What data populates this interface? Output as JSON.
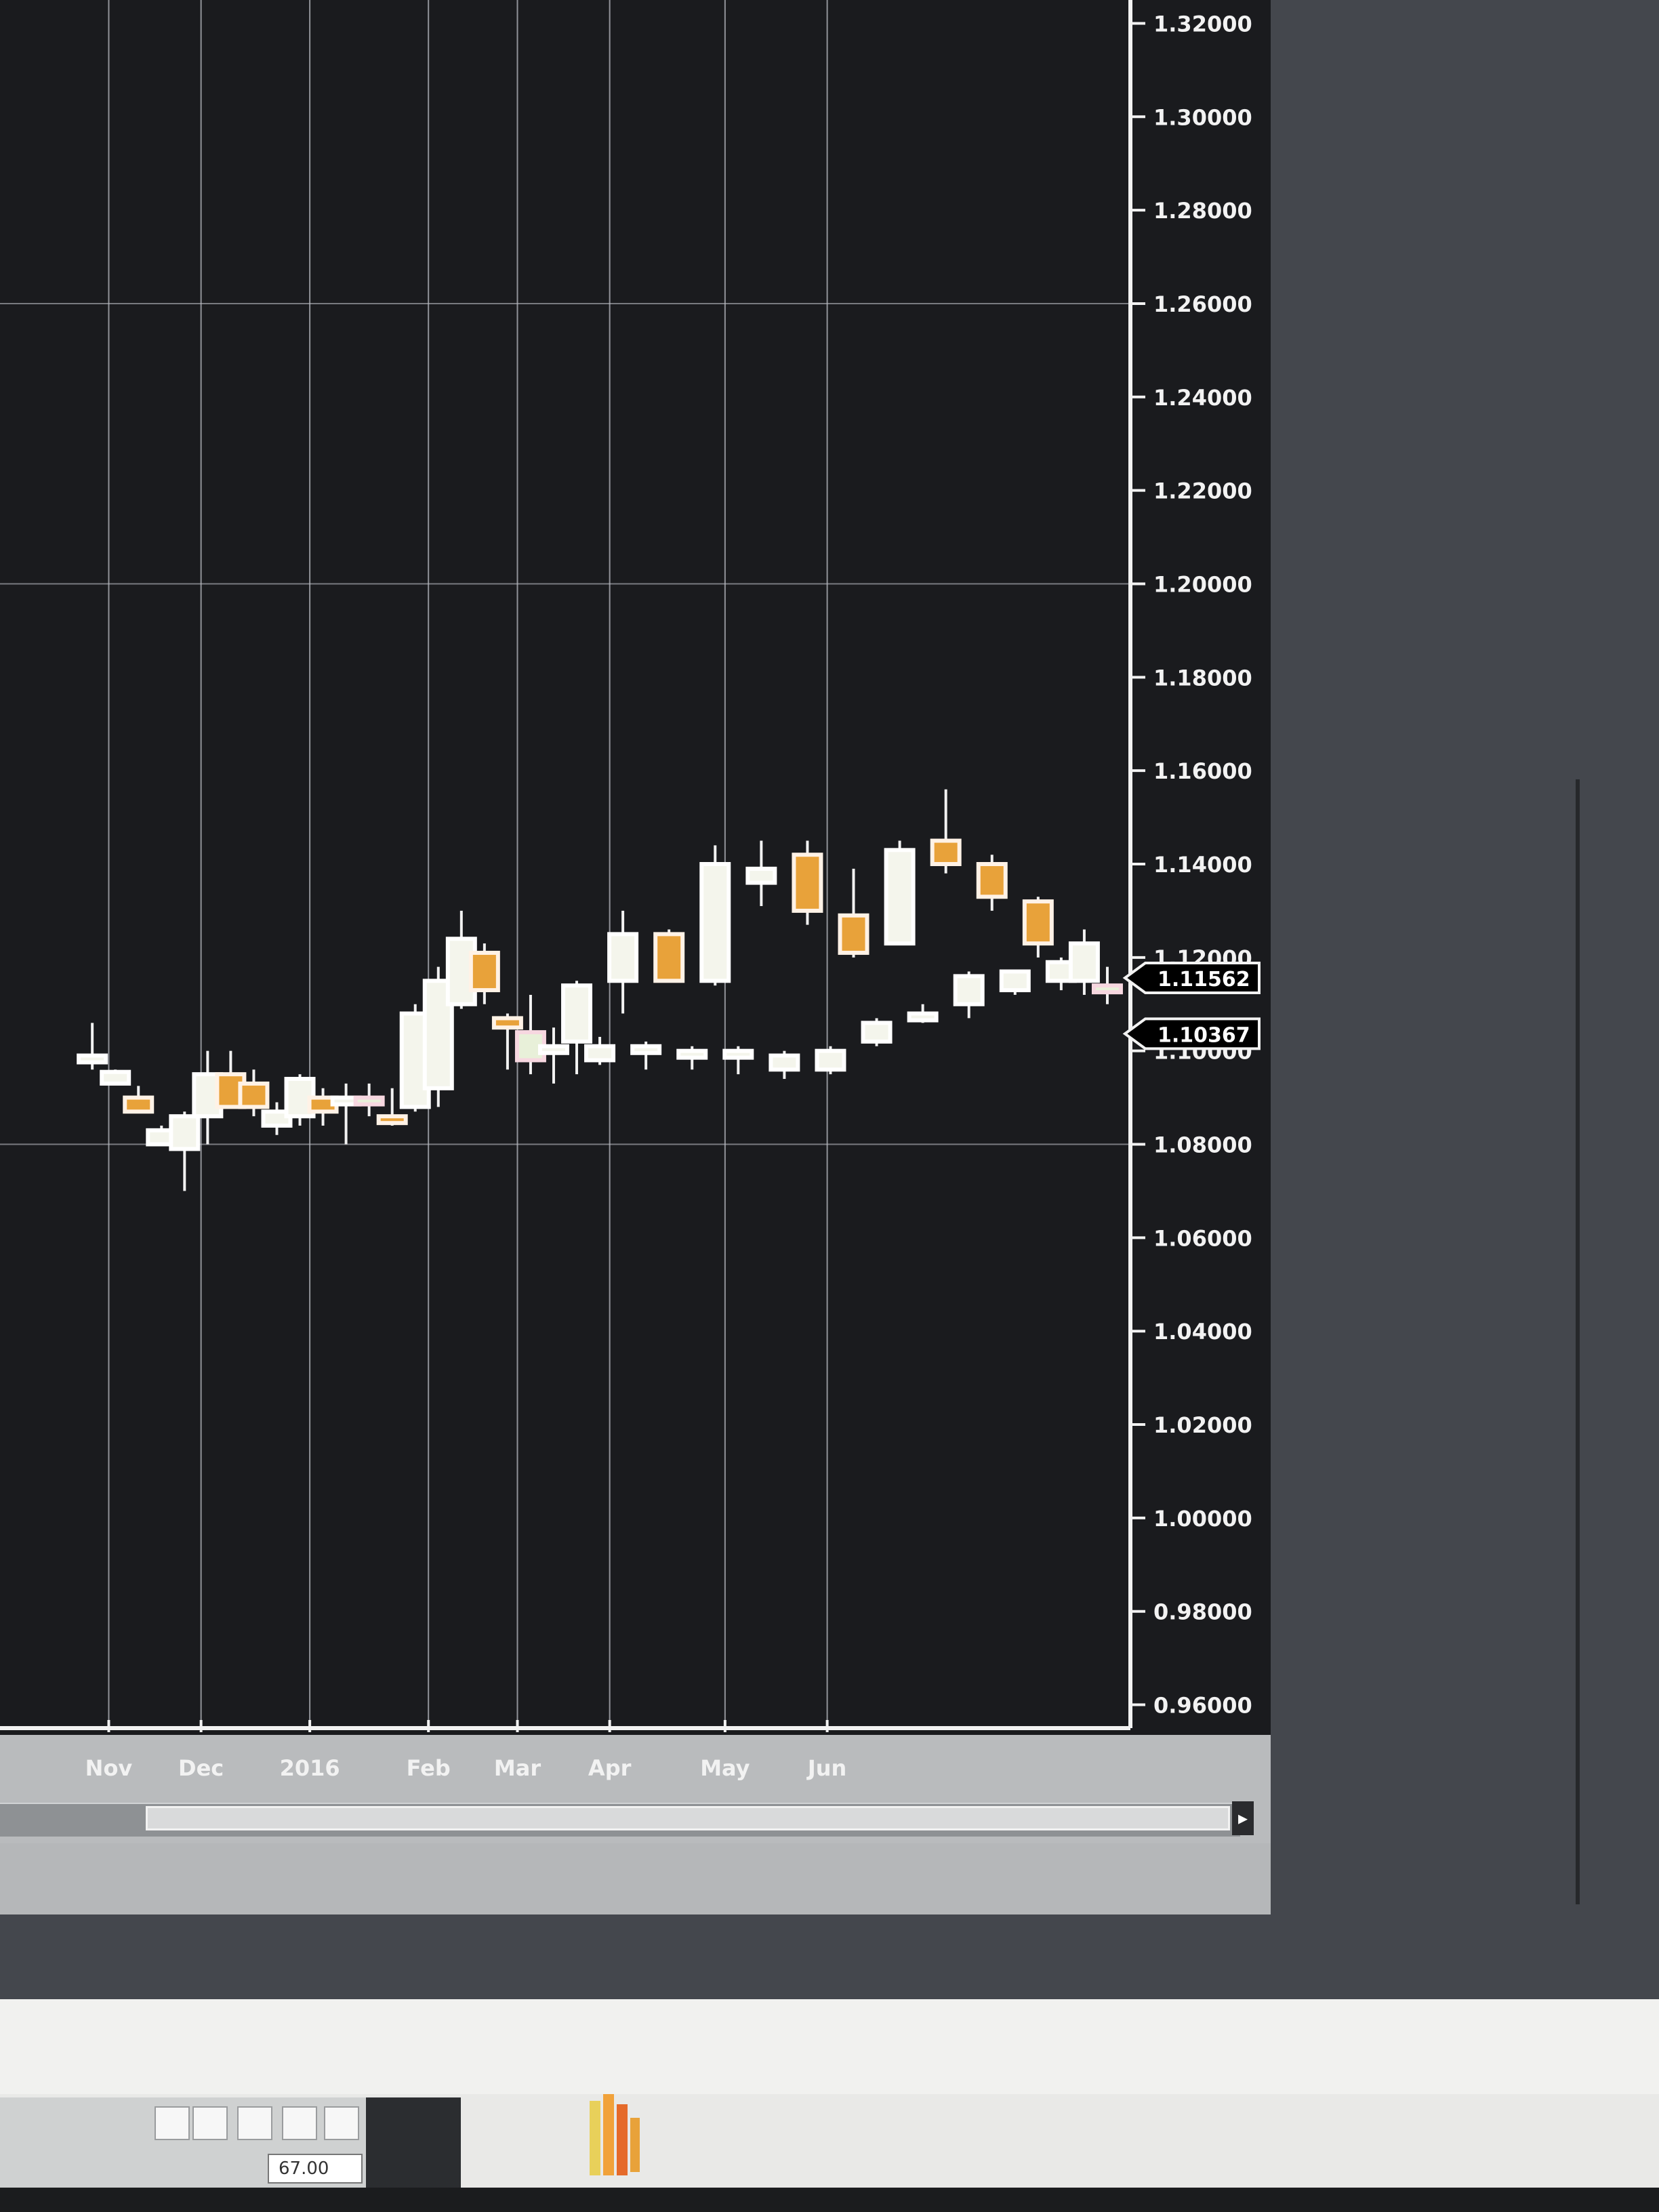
{
  "chart_data": {
    "type": "candlestick",
    "title": "",
    "x_ticks": [
      "Nov",
      "Dec",
      "2016",
      "Feb",
      "Mar",
      "Apr",
      "May",
      "Jun"
    ],
    "y_ticks": [
      "1.32000",
      "1.30000",
      "1.28000",
      "1.26000",
      "1.24000",
      "1.22000",
      "1.20000",
      "1.18000",
      "1.16000",
      "1.14000",
      "1.12000",
      "1.10000",
      "1.08000",
      "1.06000",
      "1.04000",
      "1.02000",
      "1.00000",
      "0.98000",
      "0.96000"
    ],
    "ylim": [
      0.955,
      1.325
    ],
    "grid": true,
    "price_labels": [
      "1.11562",
      "1.10367"
    ],
    "series": [
      {
        "candles": [
          {
            "date": "2015-10-29",
            "open": 1.0985,
            "high": 1.106,
            "low": 1.096,
            "close": 1.099,
            "bull": true,
            "hollow": false
          },
          {
            "date": "2015-11-05",
            "open": 1.093,
            "high": 1.096,
            "low": 1.093,
            "close": 1.0955,
            "bull": true,
            "hollow": false
          },
          {
            "date": "2015-11-12",
            "open": 1.09,
            "high": 1.0925,
            "low": 1.087,
            "close": 1.087,
            "bull": false,
            "hollow": true
          },
          {
            "date": "2015-11-19",
            "open": 1.08,
            "high": 1.084,
            "low": 1.08,
            "close": 1.083,
            "bull": true,
            "hollow": false
          },
          {
            "date": "2015-11-26",
            "open": 1.079,
            "high": 1.087,
            "low": 1.07,
            "close": 1.086,
            "bull": true,
            "hollow": false
          },
          {
            "date": "2015-12-03",
            "open": 1.086,
            "high": 1.1,
            "low": 1.08,
            "close": 1.095,
            "bull": true,
            "hollow": false
          },
          {
            "date": "2015-12-10",
            "open": 1.095,
            "high": 1.1,
            "low": 1.088,
            "close": 1.088,
            "bull": false,
            "hollow": true
          },
          {
            "date": "2015-12-17",
            "open": 1.093,
            "high": 1.096,
            "low": 1.086,
            "close": 1.088,
            "bull": false,
            "hollow": true
          },
          {
            "date": "2015-12-24",
            "open": 1.087,
            "high": 1.089,
            "low": 1.082,
            "close": 1.084,
            "bull": true,
            "hollow": false
          },
          {
            "date": "2015-12-31",
            "open": 1.086,
            "high": 1.095,
            "low": 1.084,
            "close": 1.094,
            "bull": true,
            "hollow": false
          },
          {
            "date": "2016-01-07",
            "open": 1.09,
            "high": 1.092,
            "low": 1.084,
            "close": 1.087,
            "bull": false,
            "hollow": true
          },
          {
            "date": "2016-01-14",
            "open": 1.09,
            "high": 1.093,
            "low": 1.08,
            "close": 1.09,
            "bull": true,
            "hollow": false
          },
          {
            "date": "2016-01-21",
            "open": 1.09,
            "high": 1.093,
            "low": 1.086,
            "close": 1.089,
            "bull": false,
            "hollow": false
          },
          {
            "date": "2016-01-28",
            "open": 1.085,
            "high": 1.092,
            "low": 1.084,
            "close": 1.086,
            "bull": false,
            "hollow": true
          },
          {
            "date": "2016-02-04",
            "open": 1.088,
            "high": 1.11,
            "low": 1.087,
            "close": 1.108,
            "bull": true,
            "hollow": false
          },
          {
            "date": "2016-02-11",
            "open": 1.092,
            "high": 1.118,
            "low": 1.088,
            "close": 1.115,
            "bull": true,
            "hollow": false
          },
          {
            "date": "2016-02-18",
            "open": 1.11,
            "high": 1.13,
            "low": 1.109,
            "close": 1.124,
            "bull": true,
            "hollow": false
          },
          {
            "date": "2016-02-25",
            "open": 1.121,
            "high": 1.123,
            "low": 1.11,
            "close": 1.113,
            "bull": false,
            "hollow": true
          },
          {
            "date": "2016-03-03",
            "open": 1.105,
            "high": 1.108,
            "low": 1.096,
            "close": 1.107,
            "bull": false,
            "hollow": true
          },
          {
            "date": "2016-03-10",
            "open": 1.104,
            "high": 1.112,
            "low": 1.095,
            "close": 1.098,
            "bull": false,
            "hollow": false
          },
          {
            "date": "2016-03-17",
            "open": 1.1,
            "high": 1.105,
            "low": 1.093,
            "close": 1.101,
            "bull": true,
            "hollow": false
          },
          {
            "date": "2016-03-24",
            "open": 1.102,
            "high": 1.115,
            "low": 1.095,
            "close": 1.114,
            "bull": true,
            "hollow": false
          },
          {
            "date": "2016-03-31",
            "open": 1.098,
            "high": 1.103,
            "low": 1.097,
            "close": 1.101,
            "bull": true,
            "hollow": false
          },
          {
            "date": "2016-04-07",
            "open": 1.115,
            "high": 1.13,
            "low": 1.108,
            "close": 1.125,
            "bull": true,
            "hollow": false
          },
          {
            "date": "2016-04-14",
            "open": 1.1,
            "high": 1.102,
            "low": 1.096,
            "close": 1.101,
            "bull": true,
            "hollow": false
          },
          {
            "date": "2016-04-21",
            "open": 1.125,
            "high": 1.126,
            "low": 1.115,
            "close": 1.115,
            "bull": false,
            "hollow": true
          },
          {
            "date": "2016-04-28",
            "open": 1.099,
            "high": 1.101,
            "low": 1.096,
            "close": 1.1,
            "bull": true,
            "hollow": false
          },
          {
            "date": "2016-05-05",
            "open": 1.115,
            "high": 1.144,
            "low": 1.114,
            "close": 1.14,
            "bull": true,
            "hollow": false
          },
          {
            "date": "2016-05-12",
            "open": 1.099,
            "high": 1.101,
            "low": 1.095,
            "close": 1.1,
            "bull": true,
            "hollow": false
          },
          {
            "date": "2016-05-19",
            "open": 1.136,
            "high": 1.145,
            "low": 1.131,
            "close": 1.139,
            "bull": true,
            "hollow": false
          },
          {
            "date": "2016-05-26",
            "open": 1.096,
            "high": 1.1,
            "low": 1.094,
            "close": 1.099,
            "bull": true,
            "hollow": false
          },
          {
            "date": "2016-06-02",
            "open": 1.142,
            "high": 1.145,
            "low": 1.127,
            "close": 1.13,
            "bull": false,
            "hollow": true
          },
          {
            "date": "2016-06-09",
            "open": 1.096,
            "high": 1.101,
            "low": 1.095,
            "close": 1.1,
            "bull": true,
            "hollow": false
          },
          {
            "date": "2016-06-16",
            "open": 1.129,
            "high": 1.139,
            "low": 1.12,
            "close": 1.121,
            "bull": false,
            "hollow": true
          },
          {
            "date": "2016-06-23",
            "open": 1.102,
            "high": 1.107,
            "low": 1.101,
            "close": 1.106,
            "bull": true,
            "hollow": false
          },
          {
            "date": "2016-06-30",
            "open": 1.143,
            "high": 1.145,
            "low": 1.123,
            "close": 1.123,
            "bull": true,
            "hollow": false
          },
          {
            "date": "2016-07-07",
            "open": 1.107,
            "high": 1.11,
            "low": 1.106,
            "close": 1.108,
            "bull": true,
            "hollow": false
          },
          {
            "date": "2016-07-14",
            "open": 1.145,
            "high": 1.156,
            "low": 1.138,
            "close": 1.14,
            "bull": false,
            "hollow": true
          },
          {
            "date": "2016-07-21",
            "open": 1.11,
            "high": 1.117,
            "low": 1.107,
            "close": 1.116,
            "bull": true,
            "hollow": false
          },
          {
            "date": "2016-07-28",
            "open": 1.14,
            "high": 1.142,
            "low": 1.13,
            "close": 1.133,
            "bull": false,
            "hollow": true
          },
          {
            "date": "2016-08-04",
            "open": 1.113,
            "high": 1.117,
            "low": 1.112,
            "close": 1.117,
            "bull": true,
            "hollow": false
          },
          {
            "date": "2016-08-11",
            "open": 1.132,
            "high": 1.133,
            "low": 1.12,
            "close": 1.123,
            "bull": false,
            "hollow": true
          },
          {
            "date": "2016-08-18",
            "open": 1.115,
            "high": 1.12,
            "low": 1.113,
            "close": 1.119,
            "bull": true,
            "hollow": false
          },
          {
            "date": "2016-08-25",
            "open": 1.123,
            "high": 1.126,
            "low": 1.112,
            "close": 1.115,
            "bull": true,
            "hollow": false
          },
          {
            "date": "2016-09-01",
            "open": 1.114,
            "high": 1.118,
            "low": 1.11,
            "close": 1.113,
            "bull": false,
            "hollow": false
          }
        ]
      }
    ]
  },
  "colors": {
    "background": "#1a1b1e",
    "grid": "#b9bcc2",
    "axis": "#f2f2f2",
    "bull_body": "#f4f5ec",
    "bull_body_alt": "#e8f0d9",
    "bear_fill": "#e8a23a",
    "bear_edge": "#fff2e6",
    "label_text": "#f2f2f2",
    "price_label_bg": "#000000"
  },
  "footer": {
    "field_value": "67.00"
  }
}
